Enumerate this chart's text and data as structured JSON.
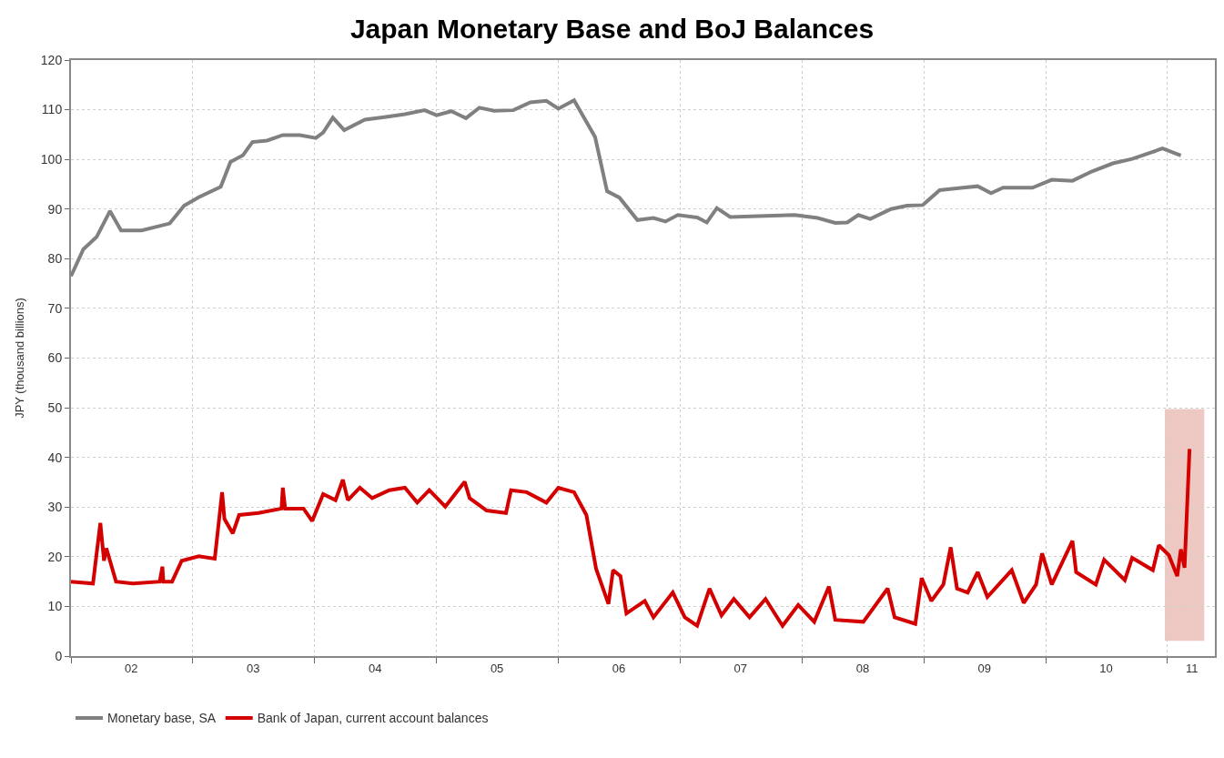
{
  "chart_data": {
    "type": "line",
    "title": "Japan Monetary Base and BoJ Balances",
    "ylabel": "JPY (thousand billions)",
    "xlim": [
      "2002-01-01",
      "2011-05-23"
    ],
    "ylim": [
      0,
      120
    ],
    "yticks": [
      0,
      10,
      20,
      30,
      40,
      50,
      60,
      70,
      80,
      90,
      100,
      110,
      120
    ],
    "xticks": [
      {
        "value": "2002-01-01",
        "label": null
      },
      {
        "value": "2002-07-01",
        "label": "02"
      },
      {
        "value": "2003-01-01",
        "label": null
      },
      {
        "value": "2003-07-01",
        "label": "03"
      },
      {
        "value": "2004-01-01",
        "label": null
      },
      {
        "value": "2004-07-01",
        "label": "04"
      },
      {
        "value": "2005-01-01",
        "label": null
      },
      {
        "value": "2005-07-01",
        "label": "05"
      },
      {
        "value": "2006-01-01",
        "label": null
      },
      {
        "value": "2006-07-01",
        "label": "06"
      },
      {
        "value": "2007-01-01",
        "label": null
      },
      {
        "value": "2007-07-01",
        "label": "07"
      },
      {
        "value": "2008-01-01",
        "label": null
      },
      {
        "value": "2008-07-01",
        "label": "08"
      },
      {
        "value": "2009-01-01",
        "label": null
      },
      {
        "value": "2009-07-01",
        "label": "09"
      },
      {
        "value": "2010-01-01",
        "label": null
      },
      {
        "value": "2010-07-01",
        "label": "10"
      },
      {
        "value": "2011-01-01",
        "label": null
      },
      {
        "value": "2011-03-15",
        "label": "11"
      }
    ],
    "grid": true,
    "legend": "bottom left",
    "line_style": "solid",
    "bands": [
      {
        "axis": "x",
        "from": "2011-01-01",
        "to": "2011-04-13",
        "color": "#d0675a"
      }
    ],
    "series": [
      {
        "name": "Monetary base, SA",
        "color": "#808080",
        "x": [
          "2002-01-01",
          "2002-02-07",
          "2002-03-19",
          "2002-04-28",
          "2002-05-31",
          "2002-08-01",
          "2002-10-24",
          "2002-12-06",
          "2003-01-19",
          "2003-03-26",
          "2003-04-24",
          "2003-05-31",
          "2003-06-29",
          "2003-08-12",
          "2003-09-28",
          "2003-11-18",
          "2004-01-05",
          "2004-01-27",
          "2004-02-25",
          "2004-03-30",
          "2004-05-31",
          "2004-07-28",
          "2004-09-28",
          "2004-11-26",
          "2005-01-01",
          "2005-02-14",
          "2005-03-30",
          "2005-05-09",
          "2005-06-22",
          "2005-08-19",
          "2005-10-09",
          "2005-11-26",
          "2006-01-01",
          "2006-02-17",
          "2006-04-21",
          "2006-05-27",
          "2006-07-03",
          "2006-08-26",
          "2006-10-13",
          "2006-11-18",
          "2006-12-25",
          "2007-02-21",
          "2007-03-22",
          "2007-04-21",
          "2007-05-31",
          "2007-08-23",
          "2007-12-10",
          "2008-02-17",
          "2008-04-10",
          "2008-05-16",
          "2008-06-18",
          "2008-07-24",
          "2008-09-24",
          "2008-11-11",
          "2008-12-28",
          "2009-02-17",
          "2009-04-28",
          "2009-06-11",
          "2009-07-21",
          "2009-08-26",
          "2009-11-22",
          "2010-01-19",
          "2010-03-22",
          "2010-05-20",
          "2010-07-21",
          "2010-09-17",
          "2010-12-17",
          "2011-02-10"
        ],
        "values": [
          76.5,
          81.9,
          84.4,
          89.6,
          85.7,
          85.7,
          87.1,
          90.7,
          92.4,
          94.5,
          99.5,
          100.8,
          103.5,
          103.8,
          104.9,
          104.9,
          104.3,
          105.4,
          108.4,
          105.9,
          108.0,
          108.5,
          109.1,
          109.9,
          108.9,
          109.7,
          108.3,
          110.4,
          109.8,
          109.9,
          111.5,
          111.8,
          110.2,
          111.9,
          104.5,
          93.6,
          92.3,
          87.8,
          88.2,
          87.5,
          88.8,
          88.3,
          87.3,
          90.2,
          88.4,
          88.6,
          88.8,
          88.2,
          87.2,
          87.3,
          88.8,
          88.0,
          90.0,
          90.7,
          90.8,
          93.8,
          94.3,
          94.6,
          93.2,
          94.3,
          94.3,
          95.9,
          95.7,
          97.6,
          99.2,
          100.1,
          102.2,
          100.8
        ]
      },
      {
        "name": "Bank of Japan, current account balances",
        "color": "#d40000",
        "x": [
          "2002-01-01",
          "2002-03-08",
          "2002-03-30",
          "2002-04-10",
          "2002-04-17",
          "2002-05-16",
          "2002-07-06",
          "2002-09-24",
          "2002-10-02",
          "2002-10-05",
          "2002-10-31",
          "2002-11-29",
          "2003-01-19",
          "2003-03-08",
          "2003-03-30",
          "2003-04-06",
          "2003-05-01",
          "2003-05-20",
          "2003-07-17",
          "2003-09-24",
          "2003-09-28",
          "2003-10-05",
          "2003-11-29",
          "2003-12-25",
          "2004-01-27",
          "2004-03-04",
          "2004-03-26",
          "2004-04-10",
          "2004-05-16",
          "2004-06-22",
          "2004-08-12",
          "2004-09-28",
          "2004-11-04",
          "2004-12-10",
          "2005-01-27",
          "2005-03-26",
          "2005-04-10",
          "2005-05-31",
          "2005-07-28",
          "2005-08-12",
          "2005-09-28",
          "2005-11-26",
          "2006-01-01",
          "2006-02-17",
          "2006-03-26",
          "2006-04-24",
          "2006-05-31",
          "2006-06-14",
          "2006-07-06",
          "2006-07-24",
          "2006-09-17",
          "2006-10-13",
          "2006-12-10",
          "2007-01-15",
          "2007-02-21",
          "2007-03-30",
          "2007-05-05",
          "2007-06-11",
          "2007-07-28",
          "2007-09-14",
          "2007-11-04",
          "2007-12-21",
          "2008-02-07",
          "2008-03-22",
          "2008-04-10",
          "2008-07-03",
          "2008-09-14",
          "2008-10-05",
          "2008-12-06",
          "2008-12-25",
          "2009-01-23",
          "2009-02-28",
          "2009-03-22",
          "2009-04-10",
          "2009-05-12",
          "2009-06-11",
          "2009-07-10",
          "2009-09-21",
          "2009-10-27",
          "2009-12-03",
          "2009-12-21",
          "2010-01-19",
          "2010-03-22",
          "2010-04-02",
          "2010-05-31",
          "2010-06-25",
          "2010-08-26",
          "2010-09-17",
          "2010-11-18",
          "2010-12-06",
          "2011-01-05",
          "2011-01-30",
          "2011-02-10",
          "2011-02-21",
          "2011-03-08"
        ],
        "values": [
          15.0,
          14.6,
          26.8,
          19.2,
          21.7,
          15.0,
          14.6,
          15.0,
          18.0,
          15.0,
          15.0,
          19.2,
          20.1,
          19.6,
          33.0,
          27.6,
          24.7,
          28.4,
          28.8,
          29.7,
          33.9,
          29.7,
          29.7,
          27.2,
          32.6,
          31.4,
          35.5,
          31.4,
          33.9,
          31.8,
          33.4,
          33.9,
          30.9,
          33.4,
          30.1,
          35.1,
          31.8,
          29.3,
          28.8,
          33.4,
          33.0,
          30.9,
          33.9,
          33.0,
          28.4,
          17.6,
          10.5,
          17.3,
          16.1,
          8.6,
          11.1,
          7.8,
          12.8,
          7.8,
          6.1,
          13.6,
          8.2,
          11.5,
          7.8,
          11.5,
          6.1,
          10.3,
          6.9,
          14.0,
          7.3,
          6.9,
          13.6,
          7.8,
          6.5,
          15.7,
          11.1,
          14.4,
          21.9,
          13.6,
          12.8,
          16.9,
          11.9,
          17.3,
          10.7,
          14.4,
          20.7,
          14.4,
          23.2,
          16.9,
          14.4,
          19.4,
          15.3,
          19.8,
          17.3,
          22.3,
          20.3,
          16.1,
          21.5,
          17.8,
          41.7
        ]
      }
    ]
  }
}
